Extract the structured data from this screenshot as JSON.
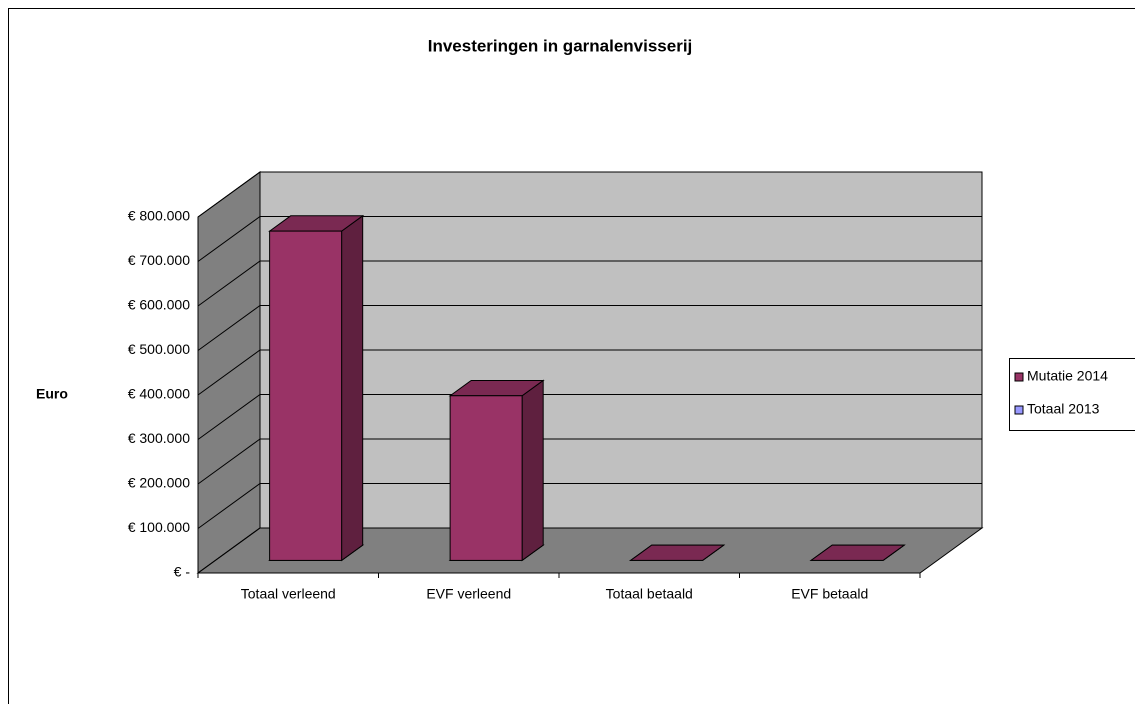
{
  "chart_data": {
    "type": "bar3d",
    "stacked": true,
    "title": "Investeringen in garnalenvisserij",
    "y_label": "Euro",
    "categories": [
      "Totaal verleend",
      "EVF verleend",
      "Totaal betaald",
      "EVF betaald"
    ],
    "series": [
      {
        "name": "Mutatie 2014",
        "color": "#993366",
        "values": [
          740000,
          370000,
          0,
          0
        ]
      },
      {
        "name": "Totaal 2013",
        "color": "#9999ff",
        "values": [
          0,
          0,
          0,
          0
        ]
      }
    ],
    "ylim": [
      0,
      800000
    ],
    "yticks": [
      {
        "value": 0,
        "label": "€ -"
      },
      {
        "value": 100000,
        "label": "€ 100.000"
      },
      {
        "value": 200000,
        "label": "€ 200.000"
      },
      {
        "value": 300000,
        "label": "€ 300.000"
      },
      {
        "value": 400000,
        "label": "€ 400.000"
      },
      {
        "value": 500000,
        "label": "€ 500.000"
      },
      {
        "value": 600000,
        "label": "€ 600.000"
      },
      {
        "value": 700000,
        "label": "€ 700.000"
      },
      {
        "value": 800000,
        "label": "€ 800.000"
      }
    ],
    "grid": true,
    "legend": "right"
  }
}
